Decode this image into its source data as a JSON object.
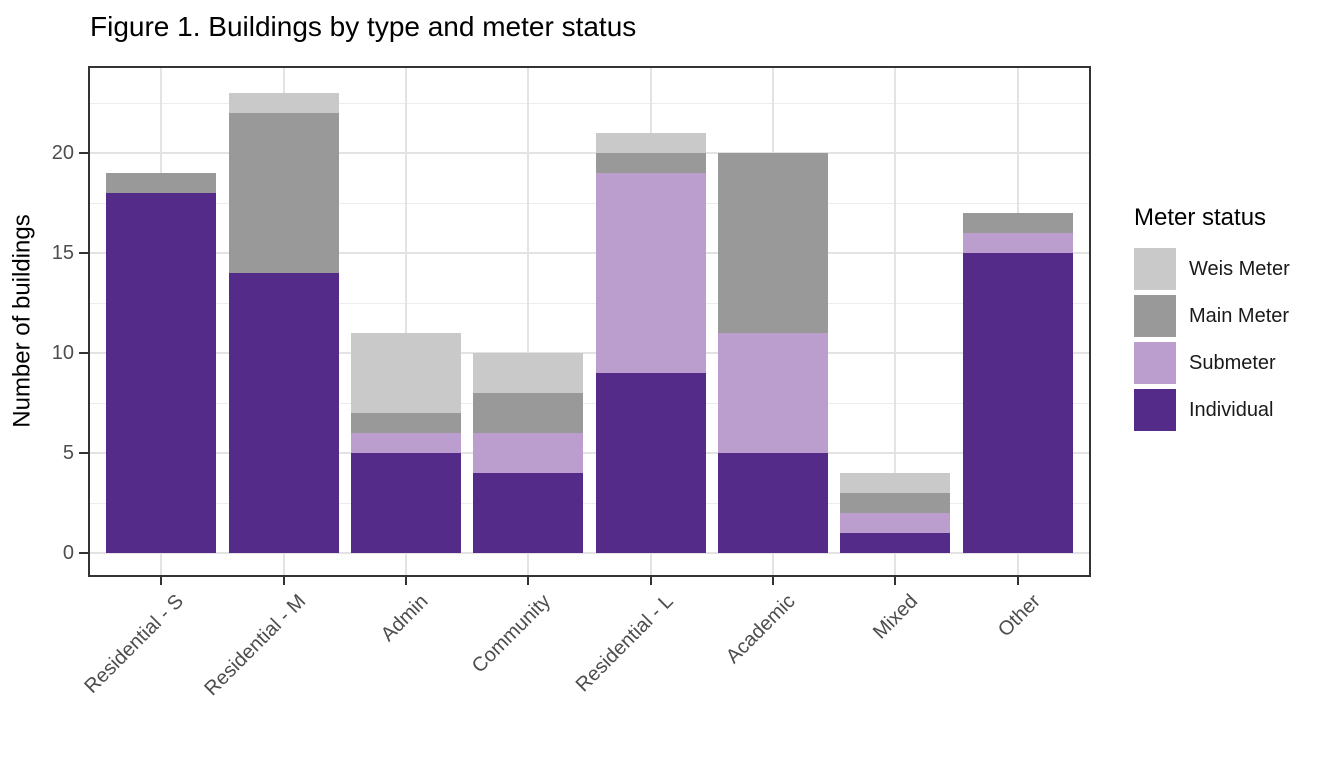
{
  "chart_data": {
    "type": "bar",
    "stacked": true,
    "title": "Figure 1. Buildings by type and meter status",
    "ylabel": "Number of buildings",
    "xlabel": "",
    "categories": [
      "Residential - S",
      "Residential - M",
      "Admin",
      "Community",
      "Residential - L",
      "Academic",
      "Mixed",
      "Other"
    ],
    "series": [
      {
        "name": "Individual",
        "color": "#552b8a",
        "values": [
          18,
          14,
          5,
          4,
          9,
          5,
          1,
          15
        ]
      },
      {
        "name": "Submeter",
        "color": "#bb9dce",
        "values": [
          0,
          0,
          1,
          2,
          10,
          6,
          1,
          1
        ]
      },
      {
        "name": "Main Meter",
        "color": "#999999",
        "values": [
          1,
          8,
          1,
          2,
          1,
          9,
          1,
          1
        ]
      },
      {
        "name": "Weis Meter",
        "color": "#c9c9c9",
        "values": [
          0,
          1,
          4,
          2,
          1,
          0,
          1,
          0
        ]
      }
    ],
    "totals": [
      19,
      23,
      11,
      10,
      21,
      20,
      4,
      17
    ],
    "ylim": [
      0,
      24.35
    ],
    "yticks": [
      0,
      5,
      10,
      15,
      20
    ],
    "y_minor_step": 2.5,
    "grid": true,
    "legend": {
      "title": "Meter status",
      "position": "right",
      "order": [
        "Weis Meter",
        "Main Meter",
        "Submeter",
        "Individual"
      ]
    },
    "colors": {
      "grid_major": "#e3e3e3",
      "grid_minor": "#ededed",
      "panel_border": "#333333",
      "tick_text": "#4d4d4d"
    }
  }
}
